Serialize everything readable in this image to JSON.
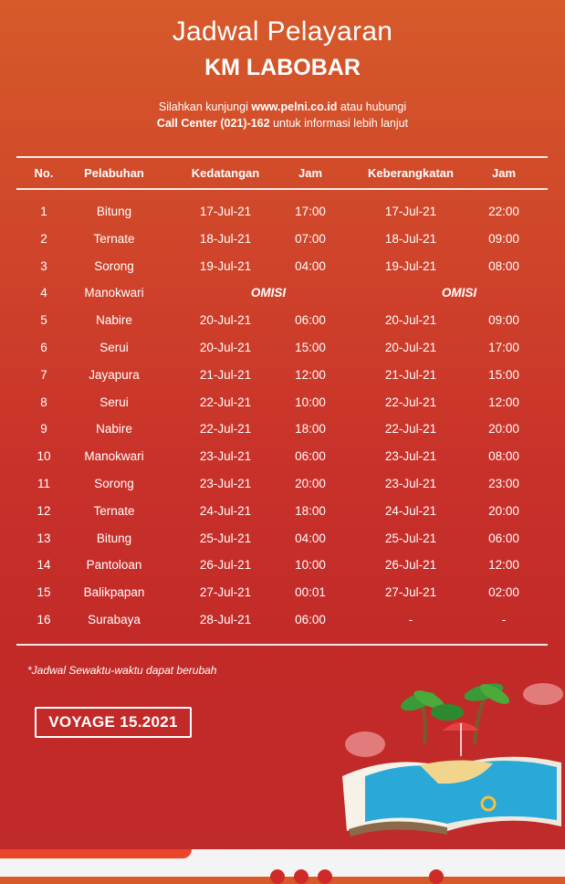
{
  "header": {
    "title": "Jadwal Pelayaran",
    "ship": "KM LABOBAR",
    "info_line1_prefix": "Silahkan kunjungi",
    "info_line1_url": "www.pelni.co.id",
    "info_line1_suffix": "atau hubungi",
    "info_line2_callcenter": "Call Center (021)-162",
    "info_line2_suffix": "untuk informasi lebih lanjut"
  },
  "table": {
    "columns": [
      "No.",
      "Pelabuhan",
      "Kedatangan",
      "Jam",
      "Keberangkatan",
      "Jam"
    ],
    "rows": [
      {
        "no": "1",
        "port": "Bitung",
        "arr": "17-Jul-21",
        "arr_time": "17:00",
        "dep": "17-Jul-21",
        "dep_time": "22:00"
      },
      {
        "no": "2",
        "port": "Ternate",
        "arr": "18-Jul-21",
        "arr_time": "07:00",
        "dep": "18-Jul-21",
        "dep_time": "09:00"
      },
      {
        "no": "3",
        "port": "Sorong",
        "arr": "19-Jul-21",
        "arr_time": "04:00",
        "dep": "19-Jul-21",
        "dep_time": "08:00"
      },
      {
        "no": "4",
        "port": "Manokwari",
        "omisi_arr": "OMISI",
        "omisi_dep": "OMISI"
      },
      {
        "no": "5",
        "port": "Nabire",
        "arr": "20-Jul-21",
        "arr_time": "06:00",
        "dep": "20-Jul-21",
        "dep_time": "09:00"
      },
      {
        "no": "6",
        "port": "Serui",
        "arr": "20-Jul-21",
        "arr_time": "15:00",
        "dep": "20-Jul-21",
        "dep_time": "17:00"
      },
      {
        "no": "7",
        "port": "Jayapura",
        "arr": "21-Jul-21",
        "arr_time": "12:00",
        "dep": "21-Jul-21",
        "dep_time": "15:00"
      },
      {
        "no": "8",
        "port": "Serui",
        "arr": "22-Jul-21",
        "arr_time": "10:00",
        "dep": "22-Jul-21",
        "dep_time": "12:00"
      },
      {
        "no": "9",
        "port": "Nabire",
        "arr": "22-Jul-21",
        "arr_time": "18:00",
        "dep": "22-Jul-21",
        "dep_time": "20:00"
      },
      {
        "no": "10",
        "port": "Manokwari",
        "arr": "23-Jul-21",
        "arr_time": "06:00",
        "dep": "23-Jul-21",
        "dep_time": "08:00"
      },
      {
        "no": "11",
        "port": "Sorong",
        "arr": "23-Jul-21",
        "arr_time": "20:00",
        "dep": "23-Jul-21",
        "dep_time": "23:00"
      },
      {
        "no": "12",
        "port": "Ternate",
        "arr": "24-Jul-21",
        "arr_time": "18:00",
        "dep": "24-Jul-21",
        "dep_time": "20:00"
      },
      {
        "no": "13",
        "port": "Bitung",
        "arr": "25-Jul-21",
        "arr_time": "04:00",
        "dep": "25-Jul-21",
        "dep_time": "06:00"
      },
      {
        "no": "14",
        "port": "Pantoloan",
        "arr": "26-Jul-21",
        "arr_time": "10:00",
        "dep": "26-Jul-21",
        "dep_time": "12:00"
      },
      {
        "no": "15",
        "port": "Balikpapan",
        "arr": "27-Jul-21",
        "arr_time": "00:01",
        "dep": "27-Jul-21",
        "dep_time": "02:00"
      },
      {
        "no": "16",
        "port": "Surabaya",
        "arr": "28-Jul-21",
        "arr_time": "06:00",
        "dep": "-",
        "dep_time": "-"
      }
    ]
  },
  "note": "*Jadwal Sewaktu-waktu dapat berubah",
  "voyage": "VOYAGE 15.2021",
  "illustration_icon": "beach-book-icon",
  "colors": {
    "background_top": "#d65a2a",
    "background_bottom": "#bf2a2a",
    "text": "#ffffff"
  }
}
